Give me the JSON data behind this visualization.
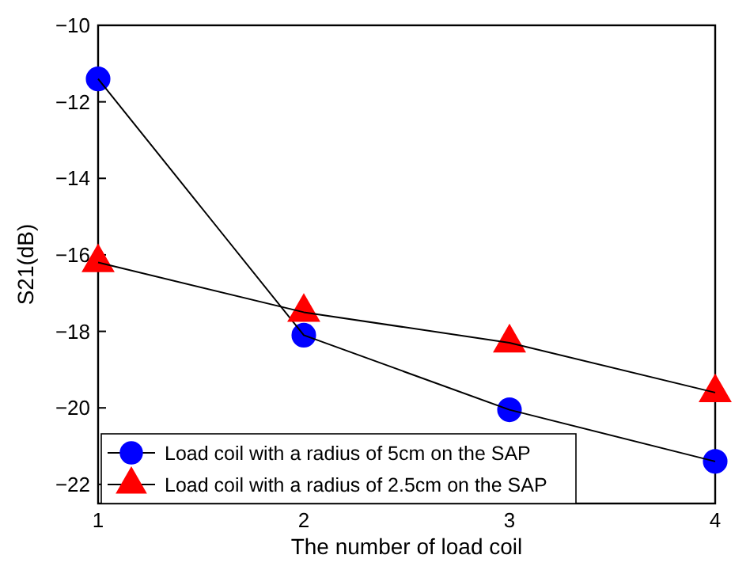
{
  "chart_data": {
    "type": "line",
    "xlabel": "The number of load coil",
    "ylabel": "S21(dB)",
    "x": [
      1,
      2,
      3,
      4
    ],
    "xlim": [
      1,
      4
    ],
    "xticks": [
      1,
      2,
      3,
      4
    ],
    "ylim": [
      -22.5,
      -10
    ],
    "yticks": [
      -22,
      -20,
      -18,
      -16,
      -14,
      -12,
      -10
    ],
    "series": [
      {
        "name": "Load coil with a radius of 5cm on the SAP",
        "color": "#0000ff",
        "marker": "circle",
        "values": [
          -11.4,
          -18.1,
          -20.05,
          -21.4
        ]
      },
      {
        "name": "Load coil with a radius of 2.5cm on the SAP",
        "color": "#ff0000",
        "marker": "triangle",
        "values": [
          -16.2,
          -17.5,
          -18.3,
          -19.6
        ]
      }
    ],
    "legend": "bottom left",
    "grid": false
  }
}
